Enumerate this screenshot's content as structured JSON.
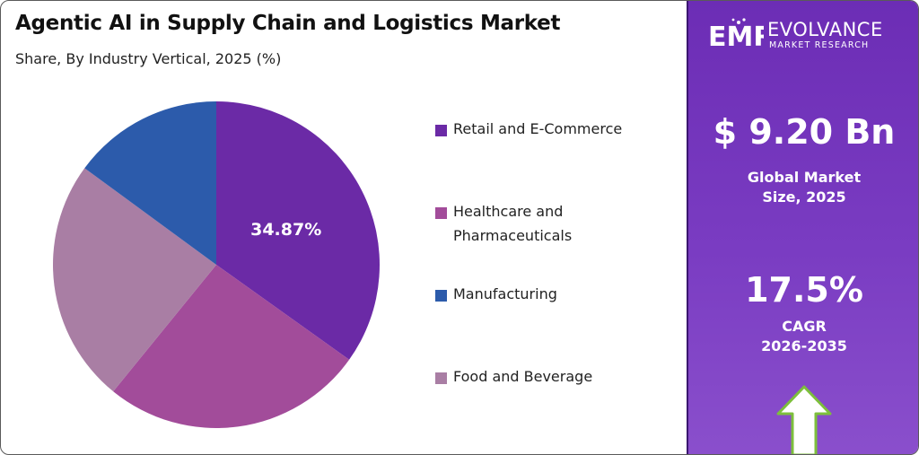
{
  "title": "Agentic AI in Supply Chain and Logistics Market",
  "subtitle": "Share, By Industry Vertical, 2025 (%)",
  "chart_data": {
    "type": "pie",
    "categories": [
      "Retail and E-Commerce",
      "Healthcare and Pharmaceuticals",
      "Food and Beverage",
      "Manufacturing"
    ],
    "values": [
      34.87,
      26.0,
      24.2,
      14.93
    ],
    "colors": [
      "#6b2aa6",
      "#a24c9a",
      "#a97ea4",
      "#2c5bab"
    ],
    "data_labels": [
      "34.87%",
      "",
      "",
      ""
    ],
    "legend": {
      "placement": "right",
      "entries": [
        {
          "label": "Retail and E-Commerce",
          "color": "#6b2aa6"
        },
        {
          "label": "Healthcare and Pharmaceuticals",
          "color": "#a24c9a"
        },
        {
          "label": "Manufacturing",
          "color": "#2c5bab"
        },
        {
          "label": "Food and Beverage",
          "color": "#a97ea4"
        }
      ]
    }
  },
  "legend_lines": {
    "retail": [
      "Retail and E-Commerce"
    ],
    "healthcare": [
      "Healthcare and",
      "Pharmaceuticals"
    ],
    "manufacturing": [
      "Manufacturing"
    ],
    "food": [
      "Food and Beverage"
    ]
  },
  "brand": {
    "logo_mark": "EMR",
    "name": "EVOLVANCE",
    "tagline": "MARKET RESEARCH"
  },
  "stats": {
    "market_size_value": "$ 9.20 Bn",
    "market_size_caption_1": "Global Market",
    "market_size_caption_2": "Size, 2025",
    "cagr_value": "17.5%",
    "cagr_caption_1": "CAGR",
    "cagr_caption_2": "2026-2035"
  },
  "icons": {
    "growth": "up-arrow-icon"
  },
  "colors": {
    "sidebar": "#7434bb",
    "text_dark": "#111111"
  }
}
